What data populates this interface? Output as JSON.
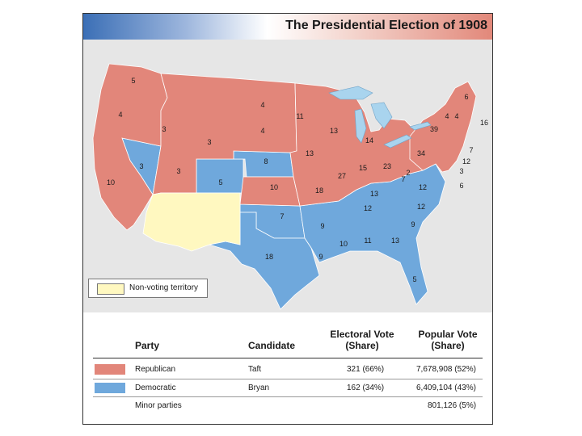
{
  "title": "The Presidential Election of 1908",
  "colors": {
    "republican": "#e2867a",
    "democratic": "#6fa8dc",
    "non_voting": "#fff8c0",
    "water": "#a9d4ee",
    "background": "#e6e6e6"
  },
  "map": {
    "electoral_labels": [
      "5",
      "4",
      "3",
      "10",
      "3",
      "3",
      "3",
      "5",
      "4",
      "4",
      "8",
      "10",
      "11",
      "13",
      "13",
      "18",
      "27",
      "15",
      "14",
      "23",
      "34",
      "39",
      "6",
      "4",
      "4",
      "16",
      "7",
      "12",
      "3",
      "6",
      "2",
      "7",
      "12",
      "13",
      "12",
      "12",
      "9",
      "13",
      "11",
      "10",
      "9",
      "9",
      "7",
      "18",
      "5"
    ],
    "legend": {
      "non_voting_label": "Non-voting territory"
    }
  },
  "table": {
    "headers": {
      "party": "Party",
      "candidate": "Candidate",
      "electoral_line1": "Electoral Vote",
      "electoral_line2": "(Share)",
      "popular_line1": "Popular Vote",
      "popular_line2": "(Share)"
    },
    "rows": [
      {
        "party": "Republican",
        "candidate": "Taft",
        "electoral": "321 (66%)",
        "popular": "7,678,908 (52%)",
        "color": "#e2867a"
      },
      {
        "party": "Democratic",
        "candidate": "Bryan",
        "electoral": "162 (34%)",
        "popular": "6,409,104 (43%)",
        "color": "#6fa8dc"
      },
      {
        "party": "Minor parties",
        "candidate": "",
        "electoral": "",
        "popular": "801,126 (5%)",
        "color": ""
      }
    ]
  }
}
